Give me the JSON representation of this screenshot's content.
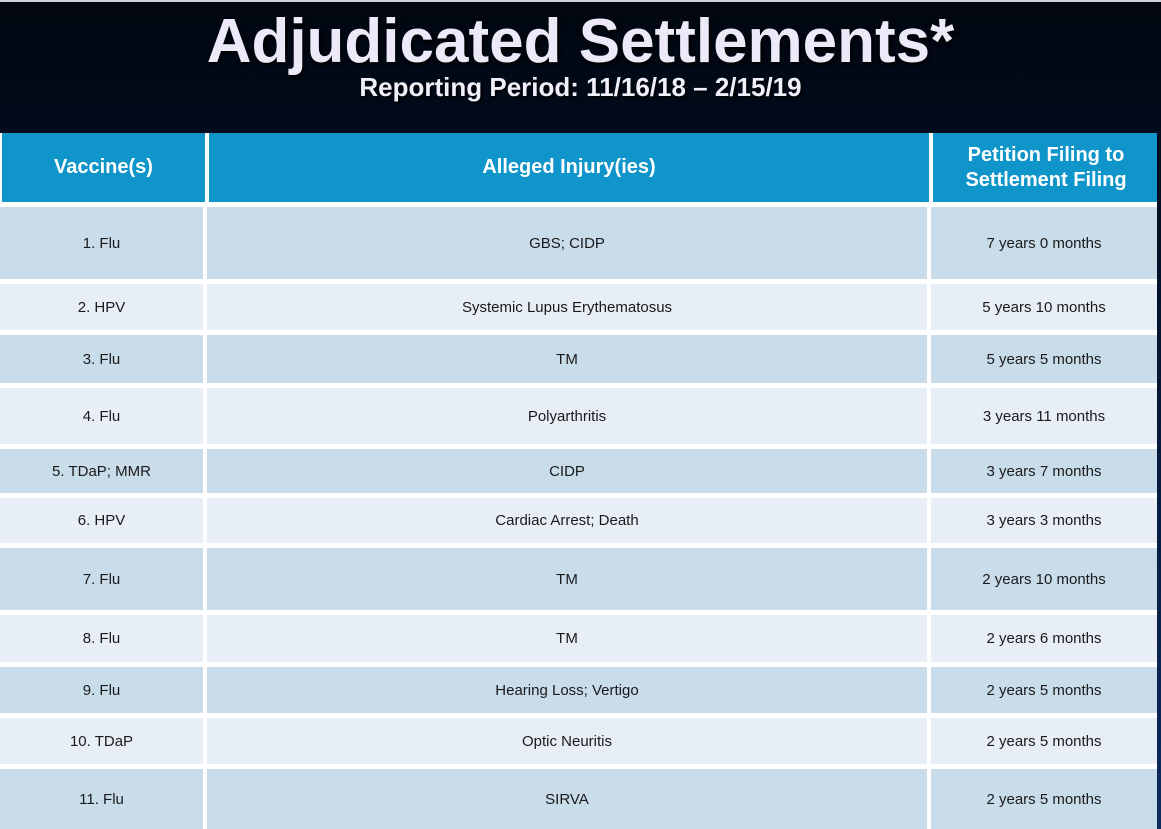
{
  "slide": {
    "title": "Adjudicated Settlements*",
    "subtitle": "Reporting Period: 11/16/18 – 2/15/19"
  },
  "table": {
    "columns": [
      "Vaccine(s)",
      "Alleged Injury(ies)",
      "Petition Filing to Settlement Filing"
    ],
    "rows": [
      {
        "vaccine": "1. Flu",
        "injury": "GBS; CIDP",
        "duration": "7 years 0 months"
      },
      {
        "vaccine": "2. HPV",
        "injury": "Systemic Lupus Erythematosus",
        "duration": "5 years 10 months"
      },
      {
        "vaccine": "3. Flu",
        "injury": "TM",
        "duration": "5 years 5 months"
      },
      {
        "vaccine": "4. Flu",
        "injury": "Polyarthritis",
        "duration": "3 years 11 months"
      },
      {
        "vaccine": "5. TDaP; MMR",
        "injury": "CIDP",
        "duration": "3 years 7 months"
      },
      {
        "vaccine": "6. HPV",
        "injury": "Cardiac Arrest; Death",
        "duration": "3 years 3 months"
      },
      {
        "vaccine": "7. Flu",
        "injury": "TM",
        "duration": "2 years 10 months"
      },
      {
        "vaccine": "8. Flu",
        "injury": "TM",
        "duration": "2 years 6 months"
      },
      {
        "vaccine": "9. Flu",
        "injury": "Hearing Loss; Vertigo",
        "duration": "2 years 5 months"
      },
      {
        "vaccine": "10. TDaP",
        "injury": "Optic Neuritis",
        "duration": "2 years 5 months"
      },
      {
        "vaccine": "11. Flu",
        "injury": "SIRVA",
        "duration": "2 years 5 months"
      }
    ]
  },
  "colors": {
    "header_bg": "#0f95c9",
    "row_odd": "#c9dcea",
    "row_even": "#e7eef6",
    "band_navy_top": "#01060f",
    "band_navy_bottom": "#0c2c60",
    "title_text": "#eceaf8",
    "body_text": "#1a1a1a"
  }
}
